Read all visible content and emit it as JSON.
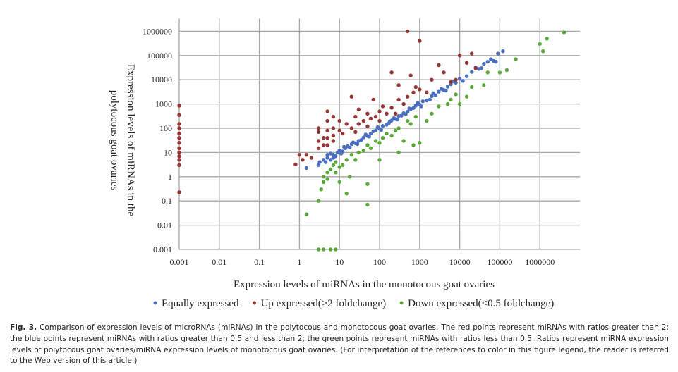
{
  "chart_data": {
    "type": "scatter",
    "title": "",
    "xlabel": "Expression levels of miRNAs in the monotocous goat ovaries",
    "ylabel": "Expression levels of miRNAs in the polytocous goat ovaries",
    "xscale": "log",
    "yscale": "log",
    "xlim": [
      0.001,
      10000000
    ],
    "ylim": [
      0.001,
      1000000
    ],
    "xticks": [
      "0.001",
      "0.01",
      "0.1",
      "1",
      "10",
      "100",
      "1000",
      "10000",
      "100000",
      "1000000"
    ],
    "yticks": [
      "0.001",
      "0.01",
      "0.1",
      "1",
      "10",
      "100",
      "1000",
      "10000",
      "100000",
      "1000000"
    ],
    "grid": true,
    "legend_position": "bottom",
    "series": [
      {
        "name": "Equally expressed",
        "color": "#4a6fbf",
        "points": [
          [
            1.5,
            2.3
          ],
          [
            3,
            3
          ],
          [
            3.2,
            4
          ],
          [
            4,
            5
          ],
          [
            4.5,
            4
          ],
          [
            5,
            6
          ],
          [
            6,
            5
          ],
          [
            7,
            8
          ],
          [
            8,
            7
          ],
          [
            9,
            10
          ],
          [
            10,
            12
          ],
          [
            12,
            11
          ],
          [
            14,
            15
          ],
          [
            16,
            18
          ],
          [
            18,
            16
          ],
          [
            20,
            22
          ],
          [
            25,
            24
          ],
          [
            30,
            30
          ],
          [
            35,
            33
          ],
          [
            40,
            42
          ],
          [
            50,
            48
          ],
          [
            60,
            60
          ],
          [
            70,
            75
          ],
          [
            80,
            80
          ],
          [
            100,
            95
          ],
          [
            120,
            125
          ],
          [
            150,
            140
          ],
          [
            180,
            190
          ],
          [
            200,
            210
          ],
          [
            250,
            240
          ],
          [
            300,
            320
          ],
          [
            350,
            330
          ],
          [
            400,
            420
          ],
          [
            500,
            480
          ],
          [
            600,
            620
          ],
          [
            700,
            680
          ],
          [
            800,
            850
          ],
          [
            1000,
            950
          ],
          [
            1200,
            1300
          ],
          [
            1500,
            1400
          ],
          [
            2000,
            2100
          ],
          [
            2500,
            2300
          ],
          [
            3000,
            3200
          ],
          [
            4000,
            3800
          ],
          [
            5000,
            5200
          ],
          [
            6000,
            6500
          ],
          [
            8000,
            7500
          ],
          [
            10000,
            11000
          ],
          [
            15000,
            14000
          ],
          [
            20000,
            21000
          ],
          [
            30000,
            28000
          ],
          [
            40000,
            45000
          ],
          [
            50000,
            55000
          ],
          [
            70000,
            60000
          ],
          [
            90000,
            120000
          ],
          [
            120000,
            150000
          ],
          [
            5,
            8
          ],
          [
            6,
            9
          ],
          [
            7,
            6
          ],
          [
            11,
            9
          ],
          [
            13,
            17
          ],
          [
            22,
            26
          ],
          [
            28,
            22
          ],
          [
            45,
            55
          ],
          [
            55,
            45
          ],
          [
            90,
            110
          ],
          [
            110,
            85
          ],
          [
            170,
            160
          ],
          [
            230,
            260
          ],
          [
            280,
            230
          ],
          [
            450,
            380
          ],
          [
            550,
            650
          ],
          [
            900,
            1100
          ],
          [
            1100,
            800
          ],
          [
            1800,
            1500
          ],
          [
            2200,
            2800
          ],
          [
            3500,
            4200
          ],
          [
            4500,
            3600
          ],
          [
            7000,
            8500
          ],
          [
            12000,
            9000
          ],
          [
            25000,
            32000
          ],
          [
            35000,
            30000
          ],
          [
            60000,
            70000
          ],
          [
            80000,
            55000
          ]
        ]
      },
      {
        "name": "Up expressed(>2 foldchange)",
        "color": "#943634",
        "points": [
          [
            0.001,
            850
          ],
          [
            0.001,
            350
          ],
          [
            0.001,
            150
          ],
          [
            0.001,
            100
          ],
          [
            0.001,
            60
          ],
          [
            0.001,
            40
          ],
          [
            0.001,
            25
          ],
          [
            0.001,
            15
          ],
          [
            0.001,
            10
          ],
          [
            0.001,
            7
          ],
          [
            0.001,
            5
          ],
          [
            0.001,
            3
          ],
          [
            0.001,
            0.23
          ],
          [
            0.8,
            3.2
          ],
          [
            1,
            8
          ],
          [
            1.2,
            5
          ],
          [
            1.5,
            8
          ],
          [
            2,
            6
          ],
          [
            3,
            15
          ],
          [
            3,
            30
          ],
          [
            3,
            70
          ],
          [
            3,
            100
          ],
          [
            4,
            40
          ],
          [
            4,
            20
          ],
          [
            5,
            500
          ],
          [
            5,
            200
          ],
          [
            5,
            80
          ],
          [
            5,
            40
          ],
          [
            5,
            20
          ],
          [
            7,
            300
          ],
          [
            7,
            100
          ],
          [
            7,
            50
          ],
          [
            7,
            30
          ],
          [
            10,
            200
          ],
          [
            10,
            80
          ],
          [
            12,
            60
          ],
          [
            15,
            150
          ],
          [
            20,
            2000
          ],
          [
            20,
            100
          ],
          [
            25,
            300
          ],
          [
            25,
            70
          ],
          [
            30,
            600
          ],
          [
            30,
            150
          ],
          [
            40,
            200
          ],
          [
            50,
            400
          ],
          [
            50,
            120
          ],
          [
            60,
            250
          ],
          [
            70,
            1500
          ],
          [
            80,
            300
          ],
          [
            100,
            500
          ],
          [
            100,
            200
          ],
          [
            120,
            800
          ],
          [
            150,
            400
          ],
          [
            200,
            700
          ],
          [
            200,
            20000
          ],
          [
            250,
            400
          ],
          [
            300,
            1500
          ],
          [
            300,
            6000
          ],
          [
            400,
            1000
          ],
          [
            500,
            1000000
          ],
          [
            500,
            2000
          ],
          [
            600,
            15000
          ],
          [
            700,
            3000
          ],
          [
            800,
            5000
          ],
          [
            1000,
            4000
          ],
          [
            1000,
            400000
          ],
          [
            1500,
            3000
          ],
          [
            2000,
            10000
          ],
          [
            3000,
            40000
          ],
          [
            4000,
            20000
          ],
          [
            6000,
            8000
          ],
          [
            8000,
            10000
          ],
          [
            10000,
            100000
          ],
          [
            15000,
            50000
          ],
          [
            20000,
            120000
          ],
          [
            25000,
            30000
          ]
        ]
      },
      {
        "name": "Down expressed(<0.5 foldchange)",
        "color": "#5aa83a",
        "points": [
          [
            1.5,
            0.028
          ],
          [
            3,
            0.001
          ],
          [
            4,
            0.001
          ],
          [
            6,
            0.001
          ],
          [
            8,
            0.001
          ],
          [
            3,
            0.1
          ],
          [
            3.5,
            0.3
          ],
          [
            4,
            0.6
          ],
          [
            4,
            1
          ],
          [
            5,
            0.8
          ],
          [
            5,
            1.5
          ],
          [
            6,
            2
          ],
          [
            7,
            3
          ],
          [
            8,
            1.5
          ],
          [
            8,
            4
          ],
          [
            10,
            0.6
          ],
          [
            10,
            2.5
          ],
          [
            12,
            3
          ],
          [
            15,
            5
          ],
          [
            15,
            0.2
          ],
          [
            18,
            1
          ],
          [
            20,
            8
          ],
          [
            25,
            5
          ],
          [
            30,
            10
          ],
          [
            40,
            12
          ],
          [
            50,
            0.5
          ],
          [
            50,
            0.07
          ],
          [
            50,
            20
          ],
          [
            60,
            15
          ],
          [
            80,
            30
          ],
          [
            100,
            25
          ],
          [
            100,
            5
          ],
          [
            120,
            40
          ],
          [
            150,
            60
          ],
          [
            200,
            50
          ],
          [
            250,
            80
          ],
          [
            300,
            100
          ],
          [
            300,
            10
          ],
          [
            400,
            30
          ],
          [
            500,
            200
          ],
          [
            600,
            150
          ],
          [
            700,
            20
          ],
          [
            800,
            300
          ],
          [
            1000,
            25
          ],
          [
            1500,
            200
          ],
          [
            2000,
            400
          ],
          [
            3000,
            800
          ],
          [
            5000,
            1000
          ],
          [
            6000,
            1500
          ],
          [
            8000,
            2500
          ],
          [
            10000,
            1000
          ],
          [
            15000,
            2000
          ],
          [
            20000,
            5000
          ],
          [
            40000,
            6000
          ],
          [
            50000,
            20000
          ],
          [
            100000,
            20000
          ],
          [
            150000,
            25000
          ],
          [
            250000,
            70000
          ],
          [
            1000000,
            300000
          ],
          [
            1200000,
            150000
          ],
          [
            1500000,
            500000
          ],
          [
            4000000,
            900000
          ]
        ]
      }
    ]
  },
  "caption": {
    "label": "Fig. 3.",
    "text": "Comparison of expression levels of microRNAs (miRNAs) in the polytocous and monotocous goat ovaries. The red points represent miRNAs with ratios greater than 2; the blue points represent miRNAs with ratios greater than 0.5 and less than 2; the green points represent miRNAs with ratios less than 0.5. Ratios represent miRNA expression levels of polytocous goat ovaries/miRNA expression levels of monotocous goat ovaries. (For interpretation of the references to color in this figure legend, the reader is referred to the Web version of this article.)"
  }
}
